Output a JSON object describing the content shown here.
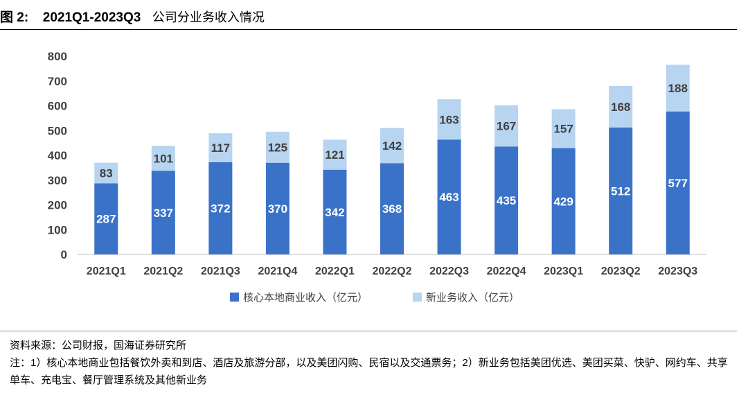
{
  "header": {
    "figure_label": "图 2:",
    "title_main": "2021Q1-2023Q3",
    "title_rest": "公司分业务收入情况"
  },
  "footer": {
    "source": "资料来源：公司财报，国海证券研究所",
    "note": "注：1）核心本地商业包括餐饮外卖和到店、酒店及旅游分部，以及美团闪购、民宿以及交通票务；2）新业务包括美团优选、美团买菜、快驴、网约车、共享单车、充电宝、餐厅管理系统及其他新业务"
  },
  "colors": {
    "core": "#3a72c8",
    "new": "#b7d4f0",
    "axis_text": "#404040"
  },
  "chart_data": {
    "type": "bar",
    "stacked": true,
    "categories": [
      "2021Q1",
      "2021Q2",
      "2021Q3",
      "2021Q4",
      "2022Q1",
      "2022Q2",
      "2022Q3",
      "2022Q4",
      "2023Q1",
      "2023Q2",
      "2023Q3"
    ],
    "series": [
      {
        "name": "核心本地商业收入（亿元）",
        "values": [
          287,
          337,
          372,
          370,
          342,
          368,
          463,
          435,
          429,
          512,
          577
        ]
      },
      {
        "name": "新业务收入（亿元）",
        "values": [
          83,
          101,
          117,
          125,
          121,
          142,
          163,
          167,
          157,
          168,
          188
        ]
      }
    ],
    "ylim": [
      0,
      800
    ],
    "yticks": [
      0,
      100,
      200,
      300,
      400,
      500,
      600,
      700,
      800
    ],
    "grid": false,
    "legend": "bottom",
    "data_labels": true
  }
}
